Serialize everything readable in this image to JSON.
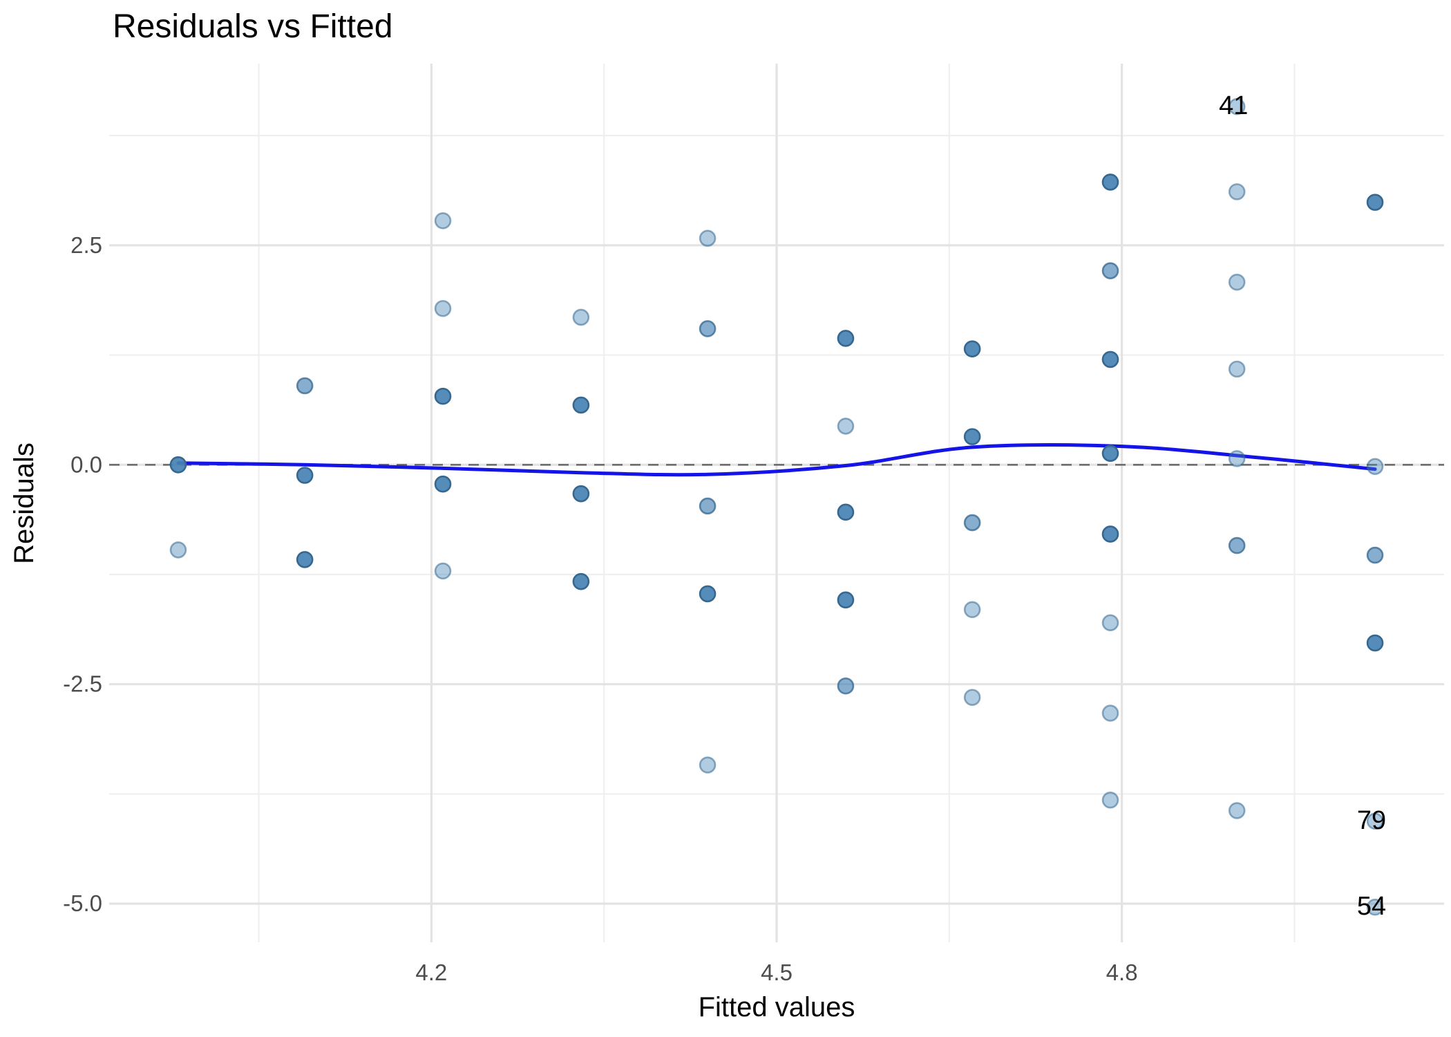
{
  "title": "Residuals vs Fitted",
  "colors": {
    "point_base": "#4682B4",
    "point_stroke": "#36688f",
    "smooth_line": "#1414e8",
    "zero_line": "#6e6e6e",
    "grid_major": "#e3e3e3",
    "grid_minor": "#efefef",
    "tick_text": "#4d4d4d",
    "background": "#ffffff"
  },
  "chart_data": {
    "type": "scatter",
    "title": "Residuals vs Fitted",
    "xlabel": "Fitted values",
    "ylabel": "Residuals",
    "xlim": [
      3.92,
      5.08
    ],
    "ylim": [
      -5.44,
      4.57
    ],
    "grid": true,
    "x_ticks": [
      {
        "v": 4.2,
        "t": "4.2"
      },
      {
        "v": 4.5,
        "t": "4.5"
      },
      {
        "v": 4.8,
        "t": "4.8"
      }
    ],
    "x_minor_ticks": [
      4.05,
      4.35,
      4.65,
      4.95
    ],
    "y_ticks": [
      {
        "v": 2.5,
        "t": "2.5"
      },
      {
        "v": 0.0,
        "t": "0.0"
      },
      {
        "v": -2.5,
        "t": "-2.5"
      },
      {
        "v": -5.0,
        "t": "-5.0"
      }
    ],
    "y_minor_ticks": [
      3.75,
      1.25,
      -1.25,
      -3.75
    ],
    "zero_reference_line": 0,
    "shade_opacity": {
      "light": 0.42,
      "medium": 0.65,
      "dark": 0.92
    },
    "points": [
      {
        "x": 3.98,
        "y": 0.0,
        "shade": "dark"
      },
      {
        "x": 3.98,
        "y": -0.97,
        "shade": "light"
      },
      {
        "x": 4.09,
        "y": 0.9,
        "shade": "medium"
      },
      {
        "x": 4.09,
        "y": -0.12,
        "shade": "dark"
      },
      {
        "x": 4.09,
        "y": -1.08,
        "shade": "dark"
      },
      {
        "x": 4.21,
        "y": 2.78,
        "shade": "light"
      },
      {
        "x": 4.21,
        "y": 1.78,
        "shade": "light"
      },
      {
        "x": 4.21,
        "y": 0.78,
        "shade": "dark"
      },
      {
        "x": 4.21,
        "y": -0.22,
        "shade": "dark"
      },
      {
        "x": 4.21,
        "y": -1.21,
        "shade": "light"
      },
      {
        "x": 4.33,
        "y": 1.68,
        "shade": "light"
      },
      {
        "x": 4.33,
        "y": 0.68,
        "shade": "dark"
      },
      {
        "x": 4.33,
        "y": -0.33,
        "shade": "dark"
      },
      {
        "x": 4.33,
        "y": -1.33,
        "shade": "dark"
      },
      {
        "x": 4.44,
        "y": 2.58,
        "shade": "light"
      },
      {
        "x": 4.44,
        "y": 1.55,
        "shade": "medium"
      },
      {
        "x": 4.44,
        "y": -0.47,
        "shade": "medium"
      },
      {
        "x": 4.44,
        "y": -1.47,
        "shade": "dark"
      },
      {
        "x": 4.44,
        "y": -3.42,
        "shade": "light"
      },
      {
        "x": 4.56,
        "y": 1.44,
        "shade": "dark"
      },
      {
        "x": 4.56,
        "y": 0.44,
        "shade": "light"
      },
      {
        "x": 4.56,
        "y": -0.54,
        "shade": "dark"
      },
      {
        "x": 4.56,
        "y": -1.54,
        "shade": "dark"
      },
      {
        "x": 4.56,
        "y": -2.52,
        "shade": "medium"
      },
      {
        "x": 4.67,
        "y": 1.32,
        "shade": "dark"
      },
      {
        "x": 4.67,
        "y": 0.32,
        "shade": "dark"
      },
      {
        "x": 4.67,
        "y": -0.66,
        "shade": "medium"
      },
      {
        "x": 4.67,
        "y": -1.65,
        "shade": "light"
      },
      {
        "x": 4.67,
        "y": -2.65,
        "shade": "light"
      },
      {
        "x": 4.79,
        "y": 3.22,
        "shade": "dark"
      },
      {
        "x": 4.79,
        "y": 2.21,
        "shade": "medium"
      },
      {
        "x": 4.79,
        "y": 1.2,
        "shade": "dark"
      },
      {
        "x": 4.79,
        "y": 0.13,
        "shade": "dark"
      },
      {
        "x": 4.79,
        "y": -0.79,
        "shade": "dark"
      },
      {
        "x": 4.79,
        "y": -1.8,
        "shade": "light"
      },
      {
        "x": 4.79,
        "y": -2.83,
        "shade": "light"
      },
      {
        "x": 4.79,
        "y": -3.82,
        "shade": "light"
      },
      {
        "x": 4.9,
        "y": 4.08,
        "shade": "light",
        "label": "41"
      },
      {
        "x": 4.9,
        "y": 3.11,
        "shade": "light"
      },
      {
        "x": 4.9,
        "y": 2.08,
        "shade": "light"
      },
      {
        "x": 4.9,
        "y": 1.09,
        "shade": "light"
      },
      {
        "x": 4.9,
        "y": 0.07,
        "shade": "light"
      },
      {
        "x": 4.9,
        "y": -0.92,
        "shade": "medium"
      },
      {
        "x": 4.9,
        "y": -3.94,
        "shade": "light"
      },
      {
        "x": 5.02,
        "y": 2.99,
        "shade": "dark"
      },
      {
        "x": 5.02,
        "y": -0.02,
        "shade": "light"
      },
      {
        "x": 5.02,
        "y": -1.03,
        "shade": "medium"
      },
      {
        "x": 5.02,
        "y": -2.03,
        "shade": "dark"
      },
      {
        "x": 5.02,
        "y": -4.06,
        "shade": "light",
        "label": "79"
      },
      {
        "x": 5.02,
        "y": -5.04,
        "shade": "light",
        "label": "54"
      }
    ],
    "smooth_line": [
      [
        3.98,
        0.02
      ],
      [
        4.09,
        0.0
      ],
      [
        4.21,
        -0.04
      ],
      [
        4.33,
        -0.09
      ],
      [
        4.44,
        -0.11
      ],
      [
        4.56,
        -0.01
      ],
      [
        4.67,
        0.2
      ],
      [
        4.8,
        0.21
      ],
      [
        4.92,
        0.08
      ],
      [
        5.02,
        -0.05
      ]
    ],
    "outlier_labels": [
      "41",
      "79",
      "54"
    ],
    "legend": "none"
  }
}
